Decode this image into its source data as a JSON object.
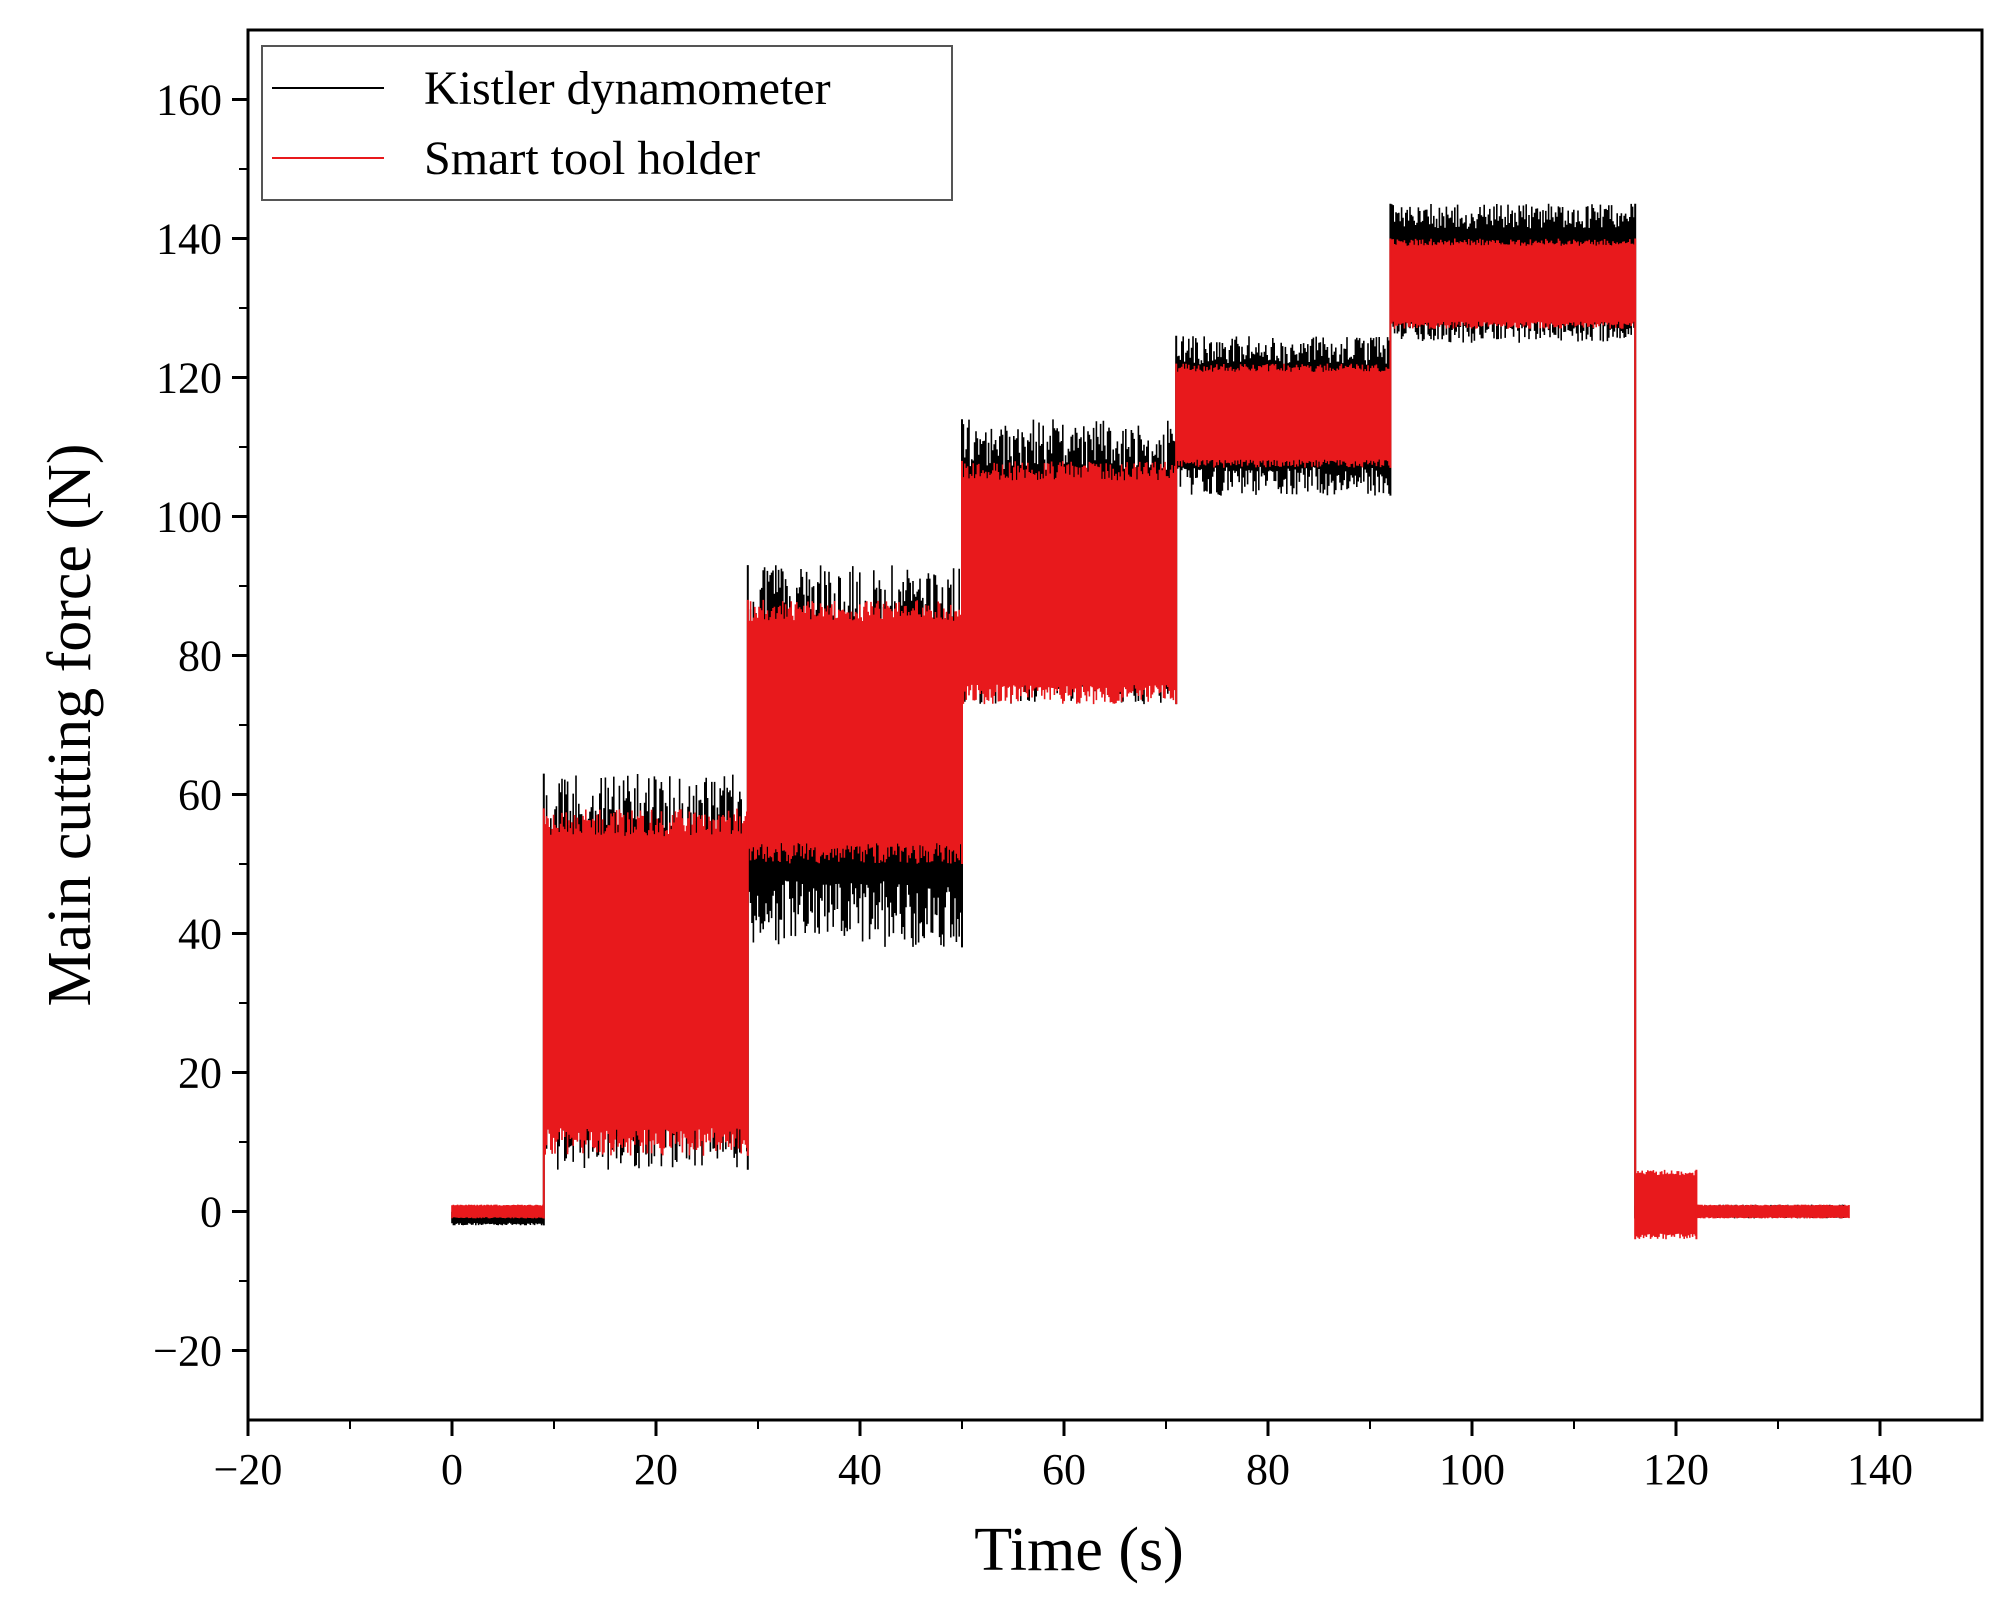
{
  "chart_data": {
    "type": "line",
    "title": "",
    "xlabel": "Time (s)",
    "ylabel": "Main cutting force (N)",
    "xlim": [
      -20,
      150
    ],
    "ylim": [
      -30,
      170
    ],
    "x_ticks": [
      -20,
      0,
      20,
      40,
      60,
      80,
      100,
      120,
      140
    ],
    "y_ticks": [
      -20,
      0,
      20,
      40,
      60,
      80,
      100,
      120,
      140,
      160
    ],
    "x_tick_labels": [
      "−20",
      "0",
      "20",
      "40",
      "60",
      "80",
      "100",
      "120",
      "140"
    ],
    "y_tick_labels": [
      "−20",
      "0",
      "20",
      "40",
      "60",
      "80",
      "100",
      "120",
      "140",
      "160"
    ],
    "grid": false,
    "legend_position": "top-left",
    "series": [
      {
        "name": "Kistler dynamometer",
        "color": "#000000",
        "segments": [
          {
            "t_start": 0,
            "t_end": 9,
            "min": -2,
            "max": 0
          },
          {
            "t_start": 9,
            "t_end": 29,
            "min": 6,
            "max": 63
          },
          {
            "t_start": 29,
            "t_end": 50,
            "min": 38,
            "max": 93
          },
          {
            "t_start": 50,
            "t_end": 71,
            "min": 73,
            "max": 114
          },
          {
            "t_start": 71,
            "t_end": 92,
            "min": 103,
            "max": 126
          },
          {
            "t_start": 92,
            "t_end": 116,
            "min": 125,
            "max": 145
          },
          {
            "t_start": 116,
            "t_end": 137,
            "min": -1,
            "max": 1
          }
        ]
      },
      {
        "name": "Smart tool holder",
        "color": "#e8191c",
        "segments": [
          {
            "t_start": 0,
            "t_end": 9,
            "min": -1,
            "max": 1
          },
          {
            "t_start": 9,
            "t_end": 29,
            "min": 8,
            "max": 58
          },
          {
            "t_start": 29,
            "t_end": 50,
            "min": 50,
            "max": 88
          },
          {
            "t_start": 50,
            "t_end": 71,
            "min": 73,
            "max": 108
          },
          {
            "t_start": 71,
            "t_end": 92,
            "min": 107,
            "max": 122
          },
          {
            "t_start": 92,
            "t_end": 116,
            "min": 127,
            "max": 140
          },
          {
            "t_start": 116,
            "t_end": 122,
            "min": -4,
            "max": 6
          },
          {
            "t_start": 122,
            "t_end": 137,
            "min": -1,
            "max": 1
          }
        ]
      }
    ]
  }
}
